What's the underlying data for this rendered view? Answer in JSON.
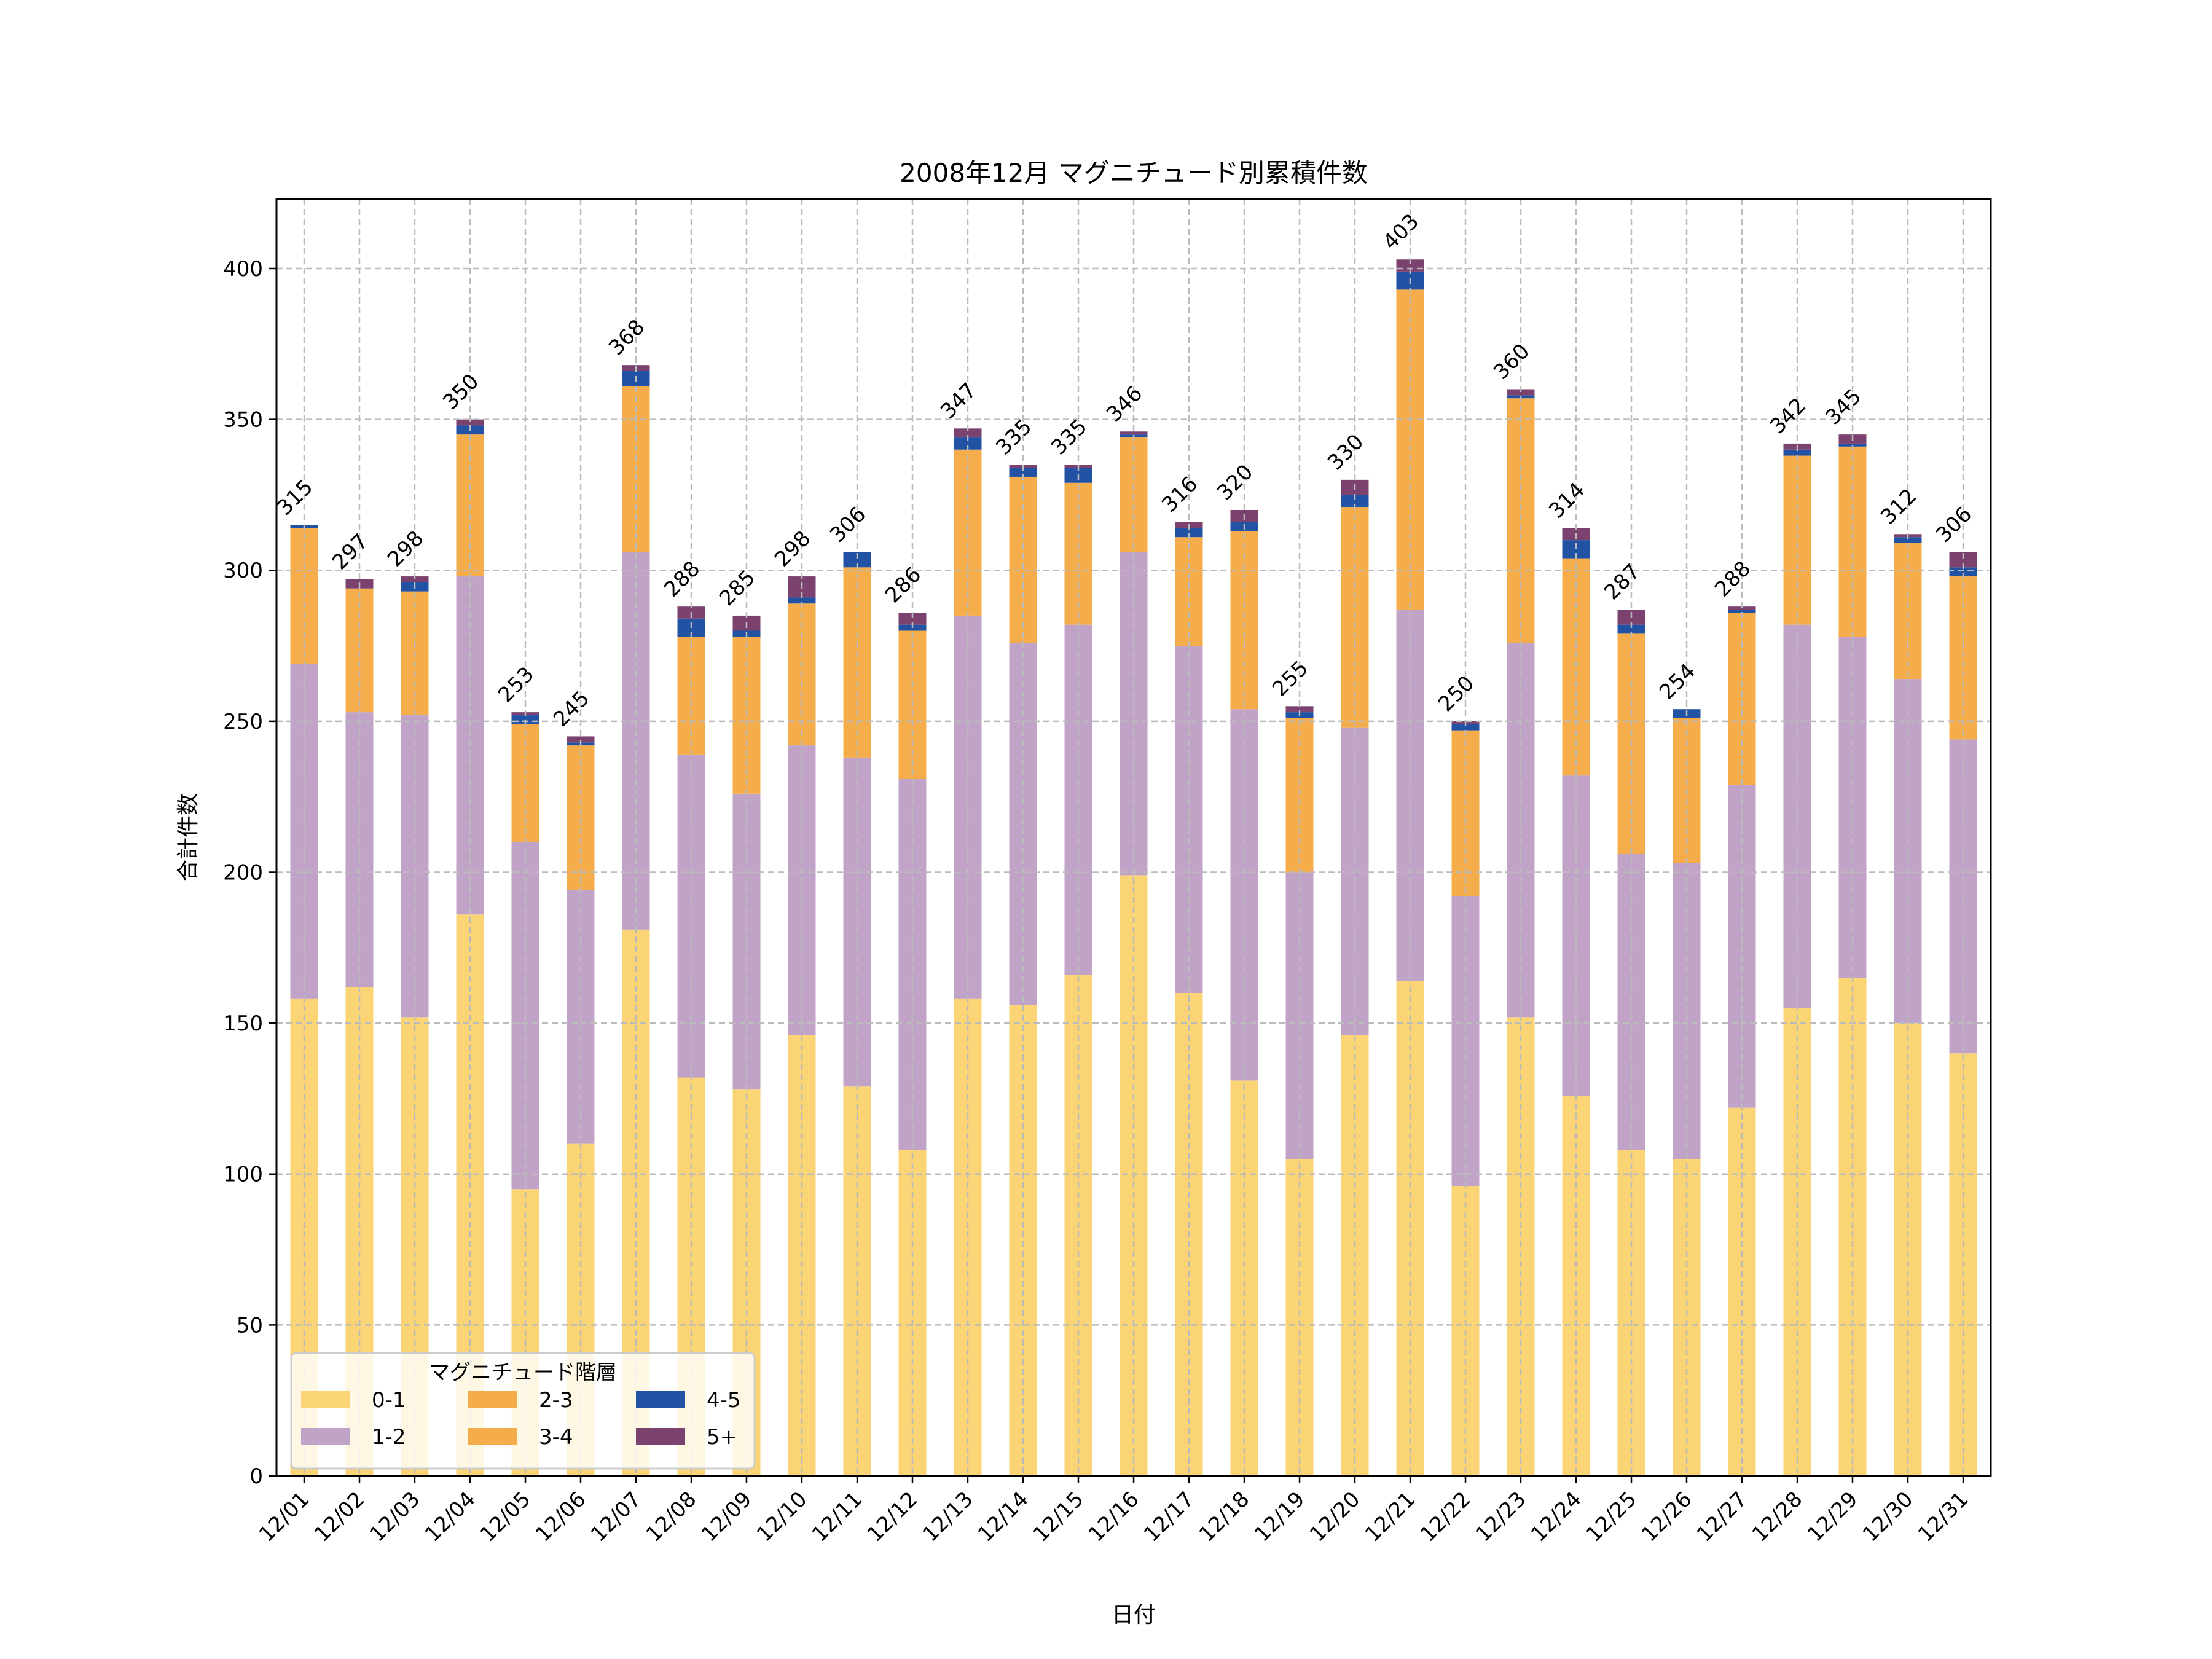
{
  "chart_data": {
    "type": "bar",
    "stacked": true,
    "title": "2008年12月 マグニチュード別累積件数",
    "xlabel": "日付",
    "ylabel": "合計件数",
    "ylim": [
      0,
      423
    ],
    "yticks": [
      0,
      50,
      100,
      150,
      200,
      250,
      300,
      350,
      400
    ],
    "grid": true,
    "legend": {
      "title": "マグニチュード階層",
      "placement": "lower-left",
      "columns": 3
    },
    "categories": [
      "12/01",
      "12/02",
      "12/03",
      "12/04",
      "12/05",
      "12/06",
      "12/07",
      "12/08",
      "12/09",
      "12/10",
      "12/11",
      "12/12",
      "12/13",
      "12/14",
      "12/15",
      "12/16",
      "12/17",
      "12/18",
      "12/19",
      "12/20",
      "12/21",
      "12/22",
      "12/23",
      "12/24",
      "12/25",
      "12/26",
      "12/27",
      "12/28",
      "12/29",
      "12/30",
      "12/31"
    ],
    "series": [
      {
        "name": "0-1",
        "color": "#FBD575",
        "values": [
          158,
          162,
          152,
          186,
          95,
          110,
          181,
          132,
          128,
          146,
          129,
          108,
          158,
          156,
          166,
          199,
          160,
          131,
          105,
          146,
          164,
          96,
          152,
          126,
          108,
          105,
          122,
          155,
          165,
          150,
          140
        ]
      },
      {
        "name": "1-2",
        "color": "#C0A3C7",
        "values": [
          111,
          91,
          100,
          112,
          115,
          84,
          125,
          107,
          98,
          96,
          109,
          123,
          127,
          120,
          116,
          107,
          115,
          123,
          95,
          102,
          123,
          96,
          124,
          106,
          98,
          98,
          107,
          127,
          113,
          114,
          104
        ]
      },
      {
        "name": "2-3",
        "color": "#F5AD4B",
        "values": [
          45,
          41,
          41,
          47,
          39,
          48,
          55,
          39,
          52,
          47,
          63,
          49,
          55,
          55,
          47,
          38,
          36,
          59,
          51,
          73,
          106,
          55,
          81,
          72,
          73,
          48,
          57,
          56,
          63,
          45,
          54
        ]
      },
      {
        "name": "3-4",
        "color": "#F5AD4B",
        "values": [
          0,
          0,
          0,
          0,
          0,
          0,
          0,
          0,
          0,
          0,
          0,
          0,
          0,
          0,
          0,
          0,
          0,
          0,
          0,
          0,
          0,
          0,
          0,
          0,
          0,
          0,
          0,
          0,
          0,
          0,
          0
        ]
      },
      {
        "name": "4-5",
        "color": "#2152A3",
        "values": [
          1,
          0,
          3,
          3,
          3,
          1,
          5,
          6,
          2,
          2,
          5,
          2,
          4,
          3,
          5,
          1,
          3,
          3,
          2,
          4,
          6,
          2,
          1,
          6,
          3,
          3,
          1,
          2,
          1,
          2,
          3
        ]
      },
      {
        "name": "5+",
        "color": "#7B4270",
        "values": [
          0,
          3,
          2,
          2,
          1,
          2,
          2,
          4,
          5,
          7,
          0,
          4,
          3,
          1,
          1,
          1,
          2,
          4,
          2,
          5,
          4,
          1,
          2,
          4,
          5,
          0,
          1,
          2,
          3,
          1,
          5
        ]
      }
    ],
    "totals": [
      315,
      297,
      298,
      350,
      253,
      245,
      368,
      288,
      285,
      298,
      306,
      286,
      347,
      335,
      335,
      346,
      316,
      320,
      255,
      330,
      403,
      250,
      360,
      314,
      287,
      254,
      288,
      342,
      345,
      312,
      306
    ]
  }
}
